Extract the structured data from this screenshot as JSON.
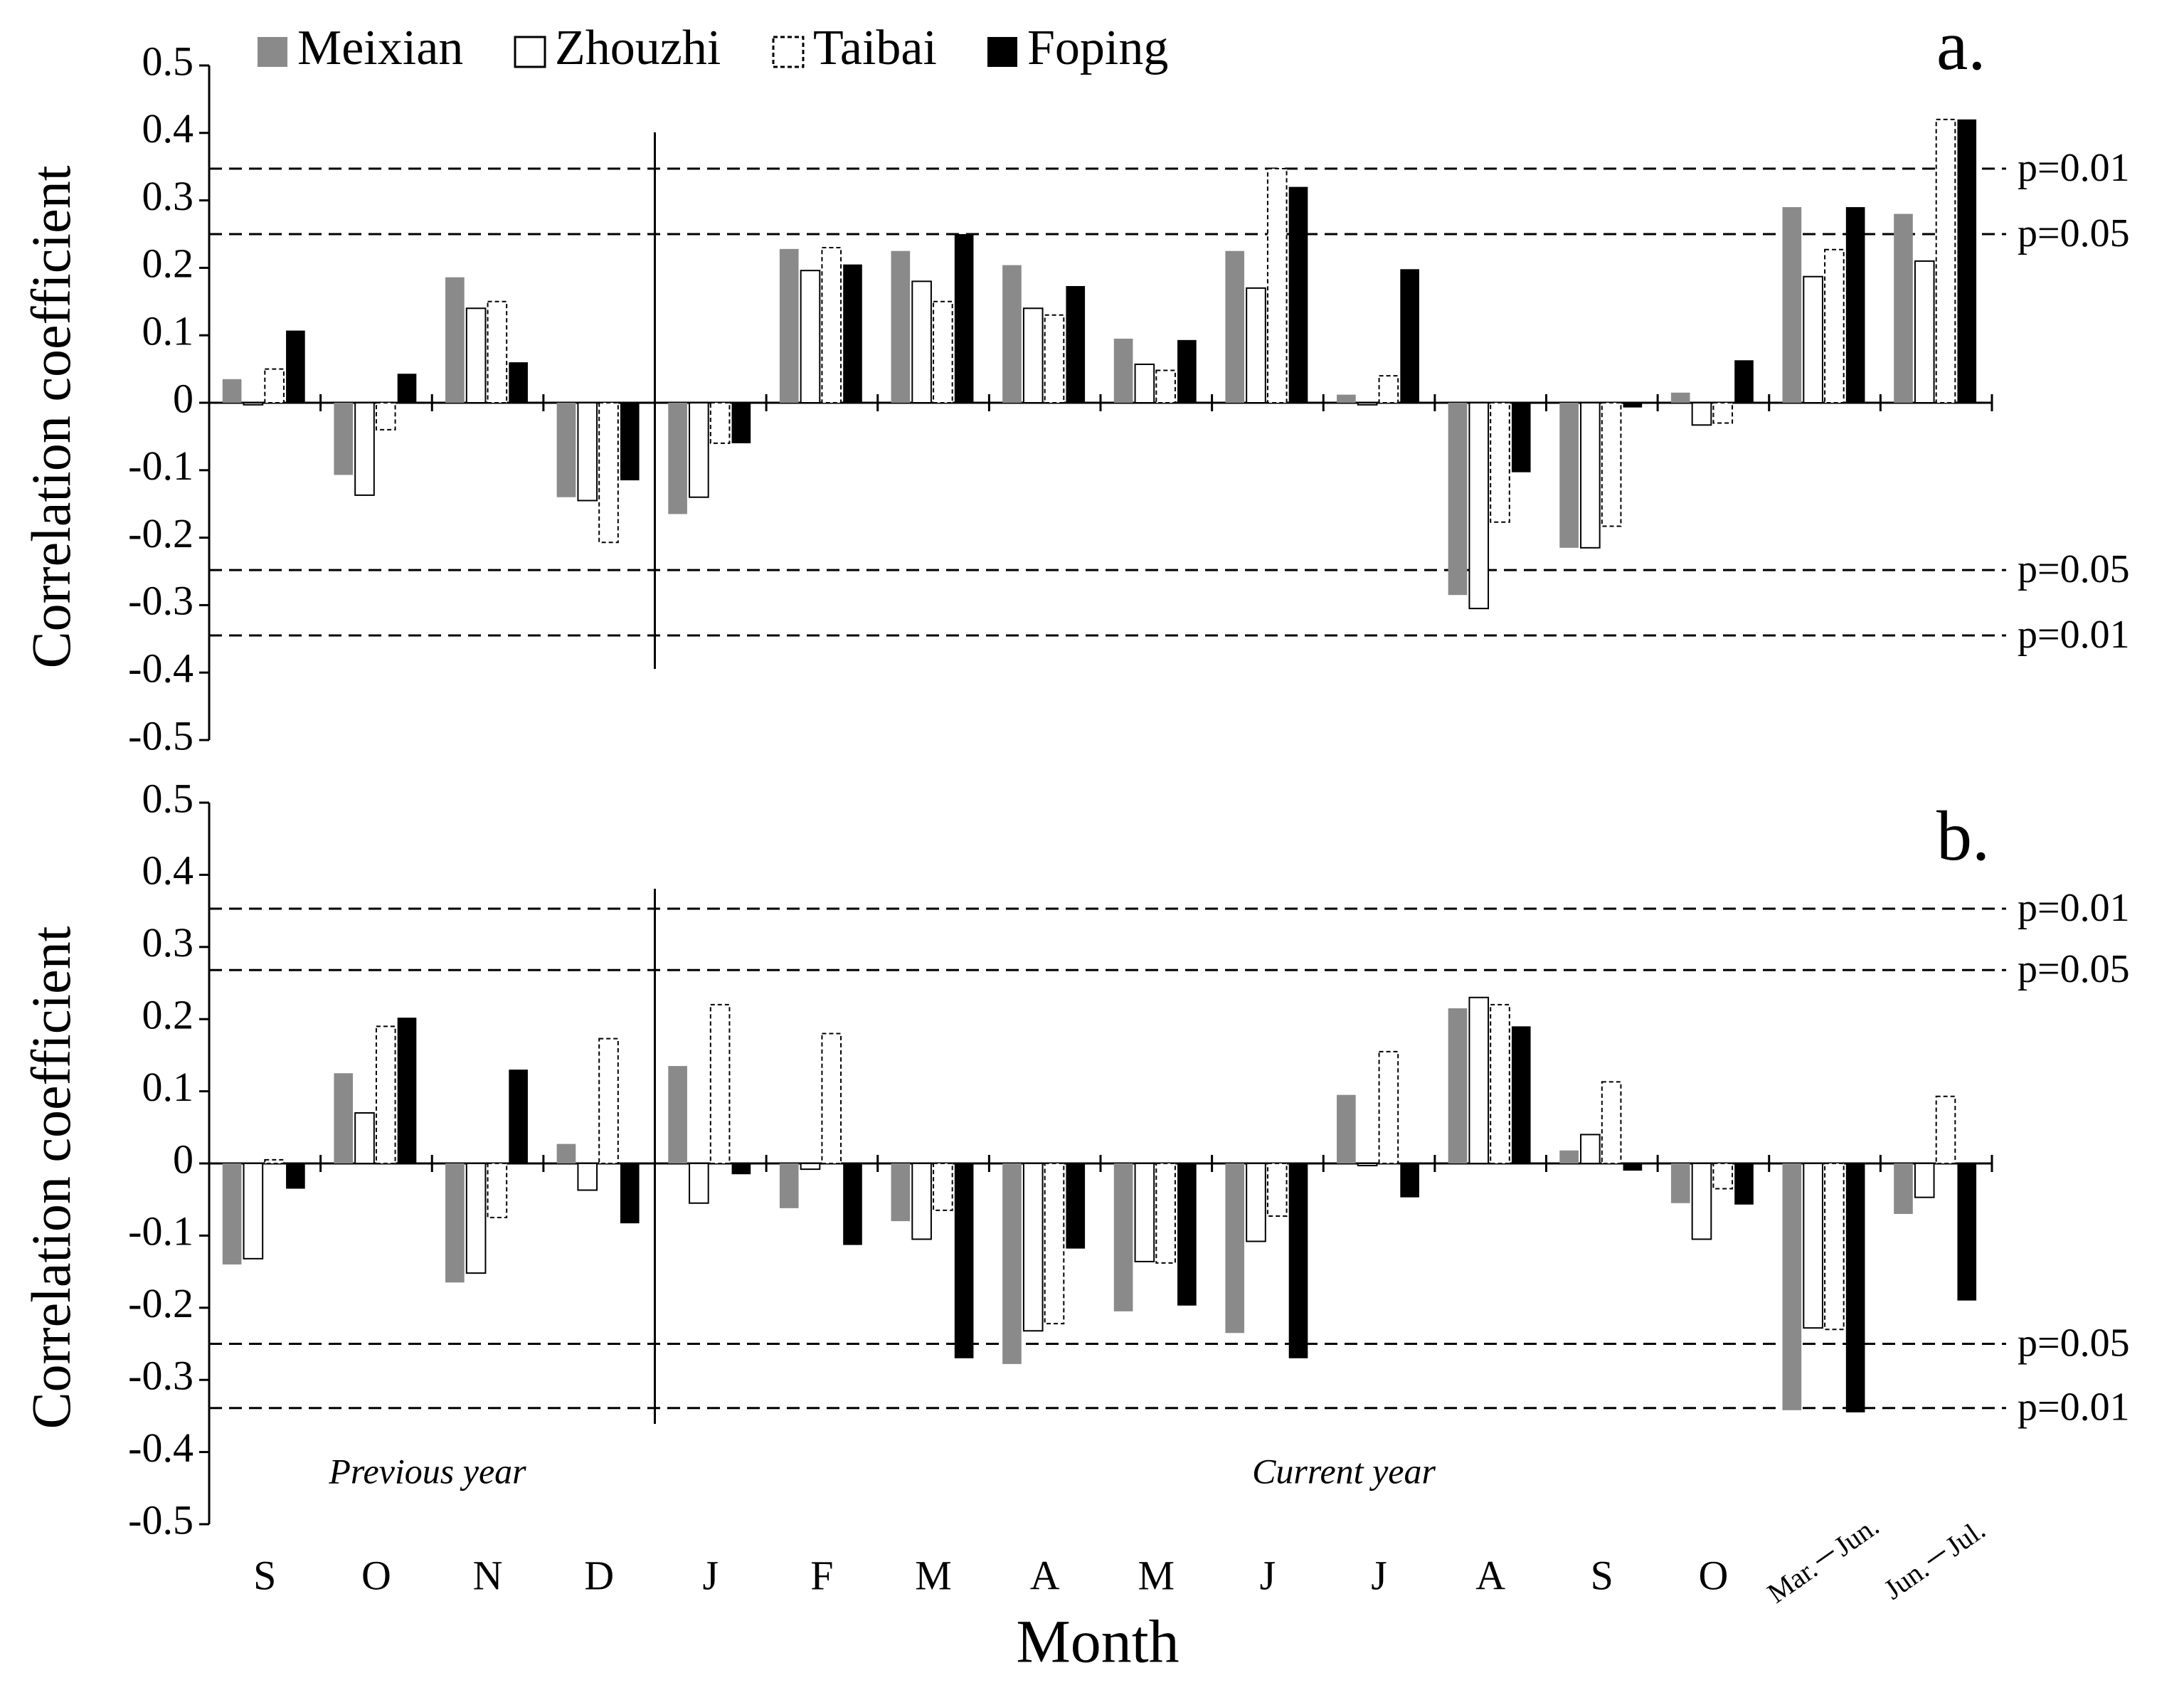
{
  "chart_data": [
    {
      "type": "bar",
      "panel_label": "a.",
      "ylabel": "Correlation coefficient",
      "legend": "top-left",
      "ylim": [
        -0.5,
        0.5
      ],
      "yticks": [
        0.5,
        0.4,
        0.3,
        0.2,
        0.1,
        0,
        -0.1,
        -0.2,
        -0.3,
        -0.4,
        -0.5
      ],
      "reference_lines": [
        {
          "value": 0.347,
          "label": "p=0.01"
        },
        {
          "value": 0.25,
          "label": "p=0.05"
        },
        {
          "value": -0.248,
          "label": "p=0.05"
        },
        {
          "value": -0.345,
          "label": "p=0.01"
        }
      ],
      "series": [
        {
          "name": "Meixian",
          "color": "#8a8a8a",
          "edge": "solid",
          "values": [
            0.035,
            -0.107,
            0.186,
            -0.14,
            -0.165,
            0.228,
            0.225,
            0.204,
            0.095,
            0.225,
            0.012,
            -0.285,
            -0.215,
            0.015,
            0.29,
            0.28
          ]
        },
        {
          "name": "Zhouzhi",
          "color": "#ffffff",
          "edge": "solid",
          "values": [
            -0.003,
            -0.137,
            0.14,
            -0.145,
            -0.14,
            0.196,
            0.18,
            0.14,
            0.057,
            0.17,
            -0.003,
            -0.305,
            -0.215,
            -0.033,
            0.187,
            0.21
          ]
        },
        {
          "name": "Taibai",
          "color": "#ffffff",
          "edge": "dashed",
          "values": [
            0.05,
            -0.04,
            0.15,
            -0.207,
            -0.06,
            0.23,
            0.15,
            0.13,
            0.048,
            0.347,
            0.04,
            -0.177,
            -0.183,
            -0.03,
            0.227,
            0.42
          ]
        },
        {
          "name": "Foping",
          "color": "#000000",
          "edge": "solid",
          "values": [
            0.107,
            0.043,
            0.06,
            -0.115,
            -0.06,
            0.205,
            0.25,
            0.173,
            0.093,
            0.32,
            0.198,
            -0.103,
            -0.007,
            0.063,
            0.29,
            0.42
          ]
        }
      ]
    },
    {
      "type": "bar",
      "panel_label": "b.",
      "ylabel": "Correlation coefficient",
      "xlabel": "Month",
      "categories": [
        "S",
        "O",
        "N",
        "D",
        "J",
        "F",
        "M",
        "A",
        "M",
        "J",
        "J",
        "A",
        "S",
        "O",
        "Mar.－Jun.",
        "Jun.－Jul."
      ],
      "annotations": [
        "Previous year",
        "Current year"
      ],
      "ylim": [
        -0.5,
        0.5
      ],
      "yticks": [
        0.5,
        0.4,
        0.3,
        0.2,
        0.1,
        0,
        -0.1,
        -0.2,
        -0.3,
        -0.4,
        -0.5
      ],
      "reference_lines": [
        {
          "value": 0.353,
          "label": "p=0.01"
        },
        {
          "value": 0.268,
          "label": "p=0.05"
        },
        {
          "value": -0.25,
          "label": "p=0.05"
        },
        {
          "value": -0.339,
          "label": "p=0.01"
        }
      ],
      "series": [
        {
          "color": "#8a8a8a",
          "edge": "solid",
          "values": [
            -0.14,
            0.125,
            -0.165,
            0.027,
            0.135,
            -0.062,
            -0.08,
            -0.278,
            -0.205,
            -0.235,
            0.095,
            0.215,
            0.018,
            -0.055,
            -0.342,
            -0.07
          ]
        },
        {
          "color": "#ffffff",
          "edge": "solid",
          "values": [
            -0.132,
            0.07,
            -0.152,
            -0.037,
            -0.055,
            -0.008,
            -0.105,
            -0.232,
            -0.136,
            -0.108,
            -0.003,
            0.23,
            0.04,
            -0.105,
            -0.228,
            -0.047
          ]
        },
        {
          "color": "#ffffff",
          "edge": "dashed",
          "values": [
            0.005,
            0.19,
            -0.075,
            0.173,
            0.22,
            0.18,
            -0.065,
            -0.222,
            -0.138,
            -0.073,
            0.155,
            0.22,
            0.113,
            -0.035,
            -0.23,
            0.093
          ]
        },
        {
          "color": "#000000",
          "edge": "solid",
          "values": [
            -0.035,
            0.202,
            0.13,
            -0.083,
            -0.015,
            -0.113,
            -0.27,
            -0.118,
            -0.197,
            -0.27,
            -0.047,
            0.19,
            -0.01,
            -0.057,
            -0.345,
            -0.19
          ]
        }
      ]
    }
  ]
}
